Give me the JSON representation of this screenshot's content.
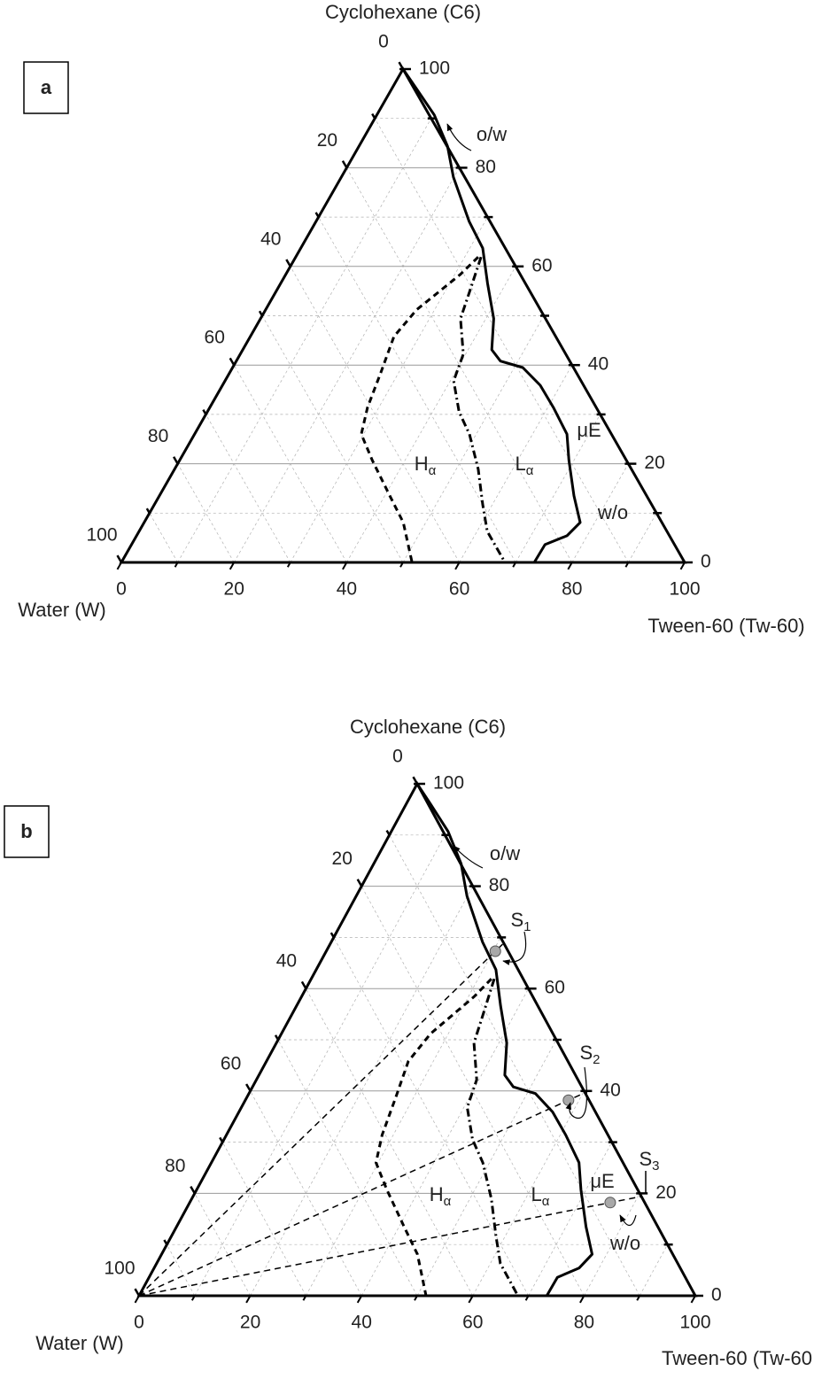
{
  "chart_data": [
    {
      "type": "ternary",
      "panel": "a",
      "top_label": "Cyclohexane (C6)",
      "left_label": "Water (W)",
      "right_label": "Tween-60 (Tw-60)",
      "ticks": [
        0,
        20,
        40,
        60,
        80,
        100
      ],
      "minor_ticks": [
        10,
        30,
        50,
        70,
        90
      ],
      "grid": true,
      "color": "#000000",
      "grid_color": "#b0b0b0",
      "curves": [
        {
          "style": "solid",
          "tw": [
            0,
            4.3,
            10.2,
            15.7,
            19.9,
            27.2,
            32.3,
            36.7,
            41.4,
            44.2,
            46.9,
            51.5,
            56.4,
            61.0,
            66.1,
            69.1,
            73.6,
            77.4,
            76.4,
            73.4,
            73.3
          ],
          "c6": [
            100,
            96.1,
            90.7,
            84.4,
            78.1,
            69.1,
            63.7,
            56.6,
            49.4,
            43.1,
            40.8,
            39.5,
            35.9,
            31.4,
            26.0,
            20.7,
            13.5,
            8.1,
            5.4,
            3.6,
            0
          ]
        },
        {
          "style": "dashdot",
          "tw": [
            32.9,
            34.4,
            35.5,
            39.6,
            40.6,
            44.7,
            48.8,
            53.9,
            58.3,
            61.8,
            68.1
          ],
          "c6": [
            61.9,
            54.8,
            49.4,
            42.2,
            36.8,
            30.5,
            26.0,
            18.9,
            11.7,
            6.3,
            0
          ]
        },
        {
          "style": "dashed",
          "tw": [
            32.4,
            31.0,
            28.9,
            26.8,
            25.5,
            26.8,
            28.0,
            29.6,
            34.2,
            40.9,
            46.0,
            51.6
          ],
          "c6": [
            61.9,
            58.4,
            54.8,
            51.2,
            45.8,
            38.6,
            31.4,
            26.0,
            20.7,
            13.5,
            8.1,
            0
          ]
        }
      ],
      "annotations": [
        {
          "text": "o/w"
        },
        {
          "text": "μE"
        },
        {
          "text": "w/o"
        },
        {
          "text": "H",
          "sub": "α"
        },
        {
          "text": "L",
          "sub": "α"
        }
      ]
    },
    {
      "type": "ternary",
      "panel": "b",
      "top_label": "Cyclohexane (C6)",
      "left_label": "Water (W)",
      "right_label": "Tween-60 (Tw-60",
      "ticks": [
        0,
        20,
        40,
        60,
        80,
        100
      ],
      "minor_ticks": [
        10,
        30,
        50,
        70,
        90
      ],
      "grid": true,
      "color": "#000000",
      "grid_color": "#b0b0b0",
      "point_color": "#a8a8a8",
      "curves": [
        {
          "style": "solid",
          "tw": [
            0,
            4.3,
            10.2,
            15.7,
            19.9,
            27.2,
            32.3,
            36.7,
            41.4,
            44.2,
            46.9,
            51.5,
            56.4,
            61.0,
            66.1,
            69.1,
            73.6,
            77.4,
            76.4,
            73.4,
            73.3
          ],
          "c6": [
            100,
            96.1,
            90.7,
            84.4,
            78.1,
            69.1,
            63.7,
            56.6,
            49.4,
            43.1,
            40.8,
            39.5,
            35.9,
            31.4,
            26.0,
            20.7,
            13.5,
            8.1,
            5.4,
            3.6,
            0
          ]
        },
        {
          "style": "dashdot",
          "tw": [
            32.9,
            34.4,
            35.5,
            39.6,
            40.6,
            44.7,
            48.8,
            53.9,
            58.3,
            61.8,
            68.1
          ],
          "c6": [
            61.9,
            54.8,
            49.4,
            42.2,
            36.8,
            30.5,
            26.0,
            18.9,
            11.7,
            6.3,
            0
          ]
        },
        {
          "style": "dashed",
          "tw": [
            32.4,
            31.0,
            28.9,
            26.8,
            25.5,
            26.8,
            28.0,
            29.6,
            34.2,
            40.9,
            46.0,
            51.6
          ],
          "c6": [
            61.9,
            58.4,
            54.8,
            51.2,
            45.8,
            38.6,
            31.4,
            26.0,
            20.7,
            13.5,
            8.1,
            0
          ]
        }
      ],
      "points": {
        "tw": [
          30.4,
          58.1,
          75.6
        ],
        "c6": [
          67.3,
          38.2,
          18.2
        ]
      },
      "annotations": [
        {
          "text": "o/w"
        },
        {
          "text": "μE"
        },
        {
          "text": "w/o"
        },
        {
          "text": "H",
          "sub": "α"
        },
        {
          "text": "L",
          "sub": "α"
        },
        {
          "text": "S",
          "sub": "1"
        },
        {
          "text": "S",
          "sub": "2"
        },
        {
          "text": "S",
          "sub": "3"
        }
      ]
    }
  ]
}
